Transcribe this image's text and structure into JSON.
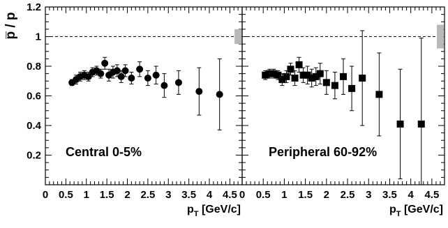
{
  "chart_data": [
    {
      "type": "scatter",
      "panel": "left",
      "marker": "circle",
      "title": "",
      "annotation": "Central 0-5%",
      "ylabel": "p̅ / p",
      "xlabel": "p",
      "xlabel_sub": "T",
      "xlabel_unit": " [GeV/c]",
      "xlim": [
        0,
        4.8
      ],
      "ylim": [
        0,
        1.2
      ],
      "xticks": [
        "0",
        "0.5",
        "1",
        "1.5",
        "2",
        "2.5",
        "3",
        "3.5",
        "4",
        "4.5"
      ],
      "yticks": [
        "0.2",
        "0.4",
        "0.6",
        "0.8",
        "1",
        "1.2"
      ],
      "reference_line_y": 1.0,
      "systematic_band": {
        "x": 4.7,
        "y_low": 0.95,
        "y_high": 1.05
      },
      "points": [
        {
          "x": 0.65,
          "y": 0.69,
          "err": 0.02
        },
        {
          "x": 0.75,
          "y": 0.71,
          "err": 0.03
        },
        {
          "x": 0.85,
          "y": 0.73,
          "err": 0.03
        },
        {
          "x": 0.95,
          "y": 0.74,
          "err": 0.03
        },
        {
          "x": 1.05,
          "y": 0.73,
          "err": 0.03
        },
        {
          "x": 1.15,
          "y": 0.76,
          "err": 0.03
        },
        {
          "x": 1.25,
          "y": 0.77,
          "err": 0.03
        },
        {
          "x": 1.35,
          "y": 0.75,
          "err": 0.03
        },
        {
          "x": 1.45,
          "y": 0.82,
          "err": 0.04
        },
        {
          "x": 1.55,
          "y": 0.74,
          "err": 0.04
        },
        {
          "x": 1.65,
          "y": 0.76,
          "err": 0.04
        },
        {
          "x": 1.75,
          "y": 0.77,
          "err": 0.04
        },
        {
          "x": 1.85,
          "y": 0.73,
          "err": 0.04
        },
        {
          "x": 1.95,
          "y": 0.77,
          "err": 0.04
        },
        {
          "x": 2.1,
          "y": 0.72,
          "err": 0.04
        },
        {
          "x": 2.3,
          "y": 0.78,
          "err": 0.05
        },
        {
          "x": 2.5,
          "y": 0.72,
          "err": 0.05
        },
        {
          "x": 2.7,
          "y": 0.74,
          "err": 0.06
        },
        {
          "x": 2.9,
          "y": 0.67,
          "err": 0.08
        },
        {
          "x": 3.25,
          "y": 0.69,
          "err": 0.08
        },
        {
          "x": 3.75,
          "y": 0.63,
          "err": 0.16
        },
        {
          "x": 4.25,
          "y": 0.61,
          "err": 0.24
        }
      ]
    },
    {
      "type": "scatter",
      "panel": "right",
      "marker": "square",
      "title": "",
      "annotation": "Peripheral 60-92%",
      "ylabel": "",
      "xlabel": "p",
      "xlabel_sub": "T",
      "xlabel_unit": " [GeV/c]",
      "xlim": [
        0,
        4.8
      ],
      "ylim": [
        0,
        1.2
      ],
      "xticks": [
        "0",
        "0.5",
        "1",
        "1.5",
        "2",
        "2.5",
        "3",
        "3.5",
        "4",
        "4.5"
      ],
      "yticks": [],
      "reference_line_y": 1.0,
      "systematic_band": {
        "x": 4.7,
        "y_low": 0.92,
        "y_high": 1.08
      },
      "points": [
        {
          "x": 0.55,
          "y": 0.74,
          "err": 0.03
        },
        {
          "x": 0.65,
          "y": 0.75,
          "err": 0.03
        },
        {
          "x": 0.75,
          "y": 0.75,
          "err": 0.03
        },
        {
          "x": 0.85,
          "y": 0.74,
          "err": 0.03
        },
        {
          "x": 0.95,
          "y": 0.71,
          "err": 0.04
        },
        {
          "x": 1.05,
          "y": 0.73,
          "err": 0.04
        },
        {
          "x": 1.15,
          "y": 0.78,
          "err": 0.04
        },
        {
          "x": 1.25,
          "y": 0.72,
          "err": 0.05
        },
        {
          "x": 1.35,
          "y": 0.81,
          "err": 0.05
        },
        {
          "x": 1.45,
          "y": 0.74,
          "err": 0.05
        },
        {
          "x": 1.55,
          "y": 0.74,
          "err": 0.06
        },
        {
          "x": 1.65,
          "y": 0.72,
          "err": 0.06
        },
        {
          "x": 1.75,
          "y": 0.73,
          "err": 0.06
        },
        {
          "x": 1.85,
          "y": 0.75,
          "err": 0.07
        },
        {
          "x": 2.0,
          "y": 0.69,
          "err": 0.08
        },
        {
          "x": 2.2,
          "y": 0.67,
          "err": 0.09
        },
        {
          "x": 2.4,
          "y": 0.73,
          "err": 0.12
        },
        {
          "x": 2.6,
          "y": 0.65,
          "err": 0.15
        },
        {
          "x": 2.85,
          "y": 0.72,
          "err": 0.32
        },
        {
          "x": 3.25,
          "y": 0.61,
          "err": 0.28
        },
        {
          "x": 3.75,
          "y": 0.41,
          "err": 0.37
        },
        {
          "x": 4.25,
          "y": 0.41,
          "err": 0.58
        }
      ]
    }
  ]
}
